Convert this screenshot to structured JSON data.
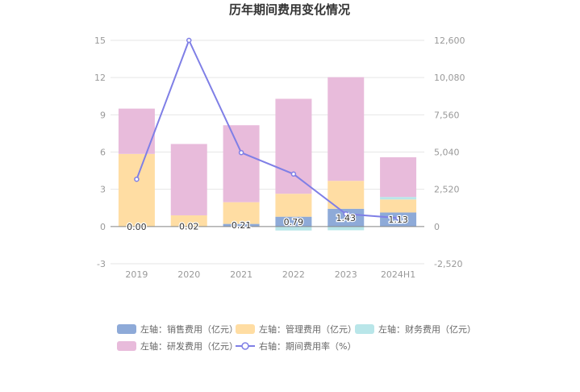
{
  "chart_data": {
    "type": "bar",
    "title": "历年期间费用变化情况",
    "categories": [
      "2019",
      "2020",
      "2021",
      "2022",
      "2023",
      "2024H1"
    ],
    "y_left": {
      "ticks": [
        "15",
        "12",
        "9",
        "6",
        "3",
        "0",
        "-3"
      ],
      "ylim": [
        -3,
        15
      ]
    },
    "y_right": {
      "ticks": [
        "12,600",
        "10,080",
        "7,560",
        "5,040",
        "2,520",
        "0",
        "-2,520"
      ],
      "ylim": [
        -2520,
        12600
      ]
    },
    "stacked": true,
    "series": [
      {
        "name": "左轴：销售费用（亿元）",
        "axis": "left",
        "color": "#8eaad8",
        "values": [
          0.0,
          0.02,
          0.21,
          0.79,
          1.43,
          1.13
        ],
        "data_labels": [
          "0.00",
          "0.02",
          "0.21",
          "0.79",
          "1.43",
          "1.13"
        ]
      },
      {
        "name": "左轴：管理费用（亿元）",
        "axis": "left",
        "color": "#ffdda3",
        "values": [
          5.85,
          0.88,
          1.75,
          1.85,
          2.25,
          1.05
        ]
      },
      {
        "name": "左轴：财务费用（亿元）",
        "axis": "left",
        "color": "#b9e6e9",
        "values": [
          0.0,
          0.0,
          0.0,
          -0.32,
          -0.3,
          0.2
        ]
      },
      {
        "name": "左轴：研发费用（亿元）",
        "axis": "left",
        "color": "#e8bbdb",
        "values": [
          3.65,
          5.75,
          6.2,
          7.65,
          8.35,
          3.2
        ]
      },
      {
        "name": "右轴：期间费用率（%）",
        "axis": "right",
        "type": "line",
        "color": "#7f7fe6",
        "values": [
          3200,
          12600,
          5000,
          3550,
          850,
          580
        ]
      }
    ],
    "legend_position": "bottom",
    "grid": true
  }
}
